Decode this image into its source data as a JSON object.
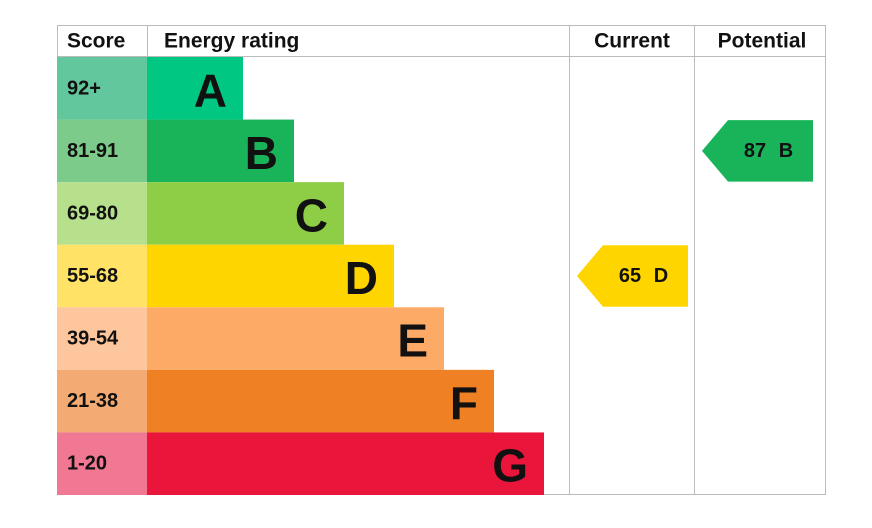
{
  "header": {
    "score": "Score",
    "energy_rating": "Energy rating",
    "current": "Current",
    "potential": "Potential"
  },
  "bands": [
    {
      "score": "92+",
      "rating": "A",
      "score_color": "#63c79d",
      "bar_color": "#00c781"
    },
    {
      "score": "81-91",
      "rating": "B",
      "score_color": "#7dcb8a",
      "bar_color": "#19b459"
    },
    {
      "score": "69-80",
      "rating": "C",
      "score_color": "#b6e08c",
      "bar_color": "#8dce46"
    },
    {
      "score": "55-68",
      "rating": "D",
      "score_color": "#ffe266",
      "bar_color": "#ffd500"
    },
    {
      "score": "39-54",
      "rating": "E",
      "score_color": "#fec69c",
      "bar_color": "#fcaa65"
    },
    {
      "score": "21-38",
      "rating": "F",
      "score_color": "#f4aa73",
      "bar_color": "#ef8023"
    },
    {
      "score": "1-20",
      "rating": "G",
      "score_color": "#f07892",
      "bar_color": "#e9153b"
    }
  ],
  "current": {
    "score": 65,
    "rating": "D"
  },
  "potential": {
    "score": 87,
    "rating": "B"
  }
}
